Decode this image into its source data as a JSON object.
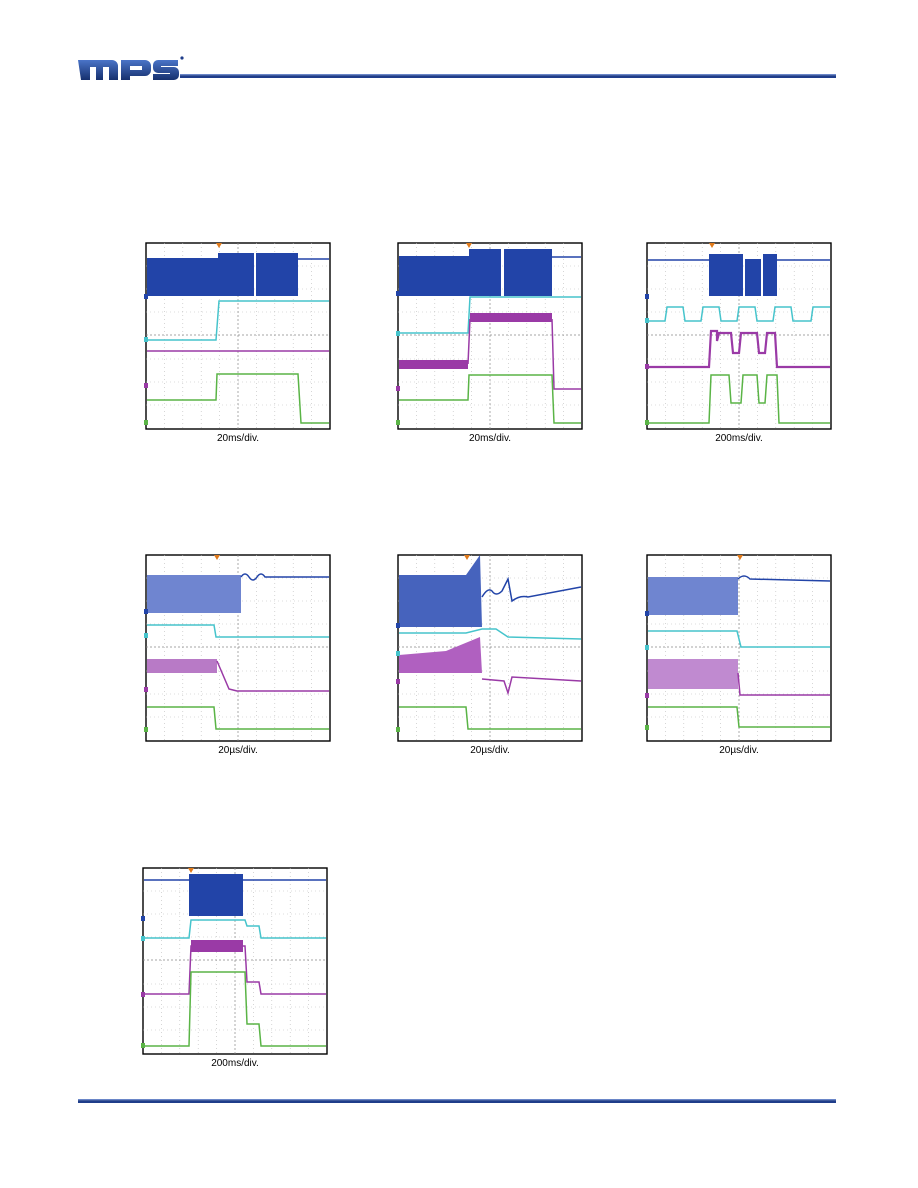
{
  "header": {
    "logo_text": "mps",
    "logo_colors": {
      "blue": "#1f3d8a",
      "accent": "#1f3d8a"
    },
    "rule_color": "#1f3d8a"
  },
  "colors": {
    "ch1": "#2244a8",
    "ch2": "#46c4cc",
    "ch3": "#9a3aa6",
    "ch4": "#5ab446",
    "trigger": "#e07a1a"
  },
  "scopes": [
    {
      "caption": "20ms/div."
    },
    {
      "caption": "20ms/div."
    },
    {
      "caption": "200ms/div."
    },
    {
      "caption": "20µs/div."
    },
    {
      "caption": "20µs/div."
    },
    {
      "caption": "20µs/div."
    },
    {
      "caption": "200ms/div."
    }
  ],
  "footer": {
    "rule_color": "#1f3d8a"
  }
}
